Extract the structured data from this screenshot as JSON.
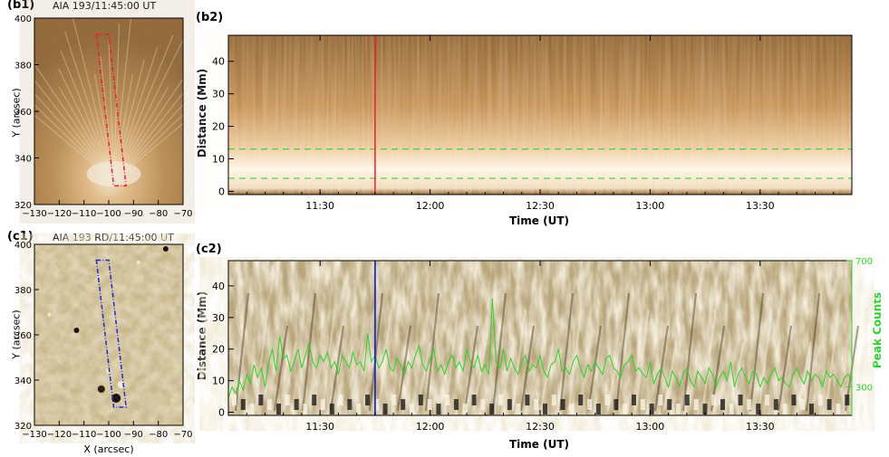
{
  "chart_data": [
    {
      "id": "b1",
      "type": "heatmap",
      "panel_label": "(b1)",
      "title": "AIA 193/11:45:00 UT",
      "ylabel": "Y (arcsec)",
      "xlabel": "",
      "xlim": [
        -130,
        -70
      ],
      "ylim": [
        320,
        400
      ],
      "xticks": [
        -130,
        -120,
        -110,
        -100,
        -90,
        -80,
        -70
      ],
      "yticks": [
        320,
        340,
        360,
        380,
        400
      ],
      "colormap": "sdoaia193",
      "slit_color": "#e8202a",
      "slit_polygon": [
        [
          -105,
          393
        ],
        [
          -100,
          393
        ],
        [
          -93,
          328
        ],
        [
          -98,
          328
        ]
      ]
    },
    {
      "id": "c1",
      "type": "heatmap",
      "panel_label": "(c1)",
      "title": "AIA 193 RD/11:45:00 UT",
      "ylabel": "Y (arcsec)",
      "xlabel": "X (arcsec)",
      "xlim": [
        -130,
        -70
      ],
      "ylim": [
        320,
        400
      ],
      "xticks": [
        -130,
        -120,
        -110,
        -100,
        -90,
        -80,
        -70
      ],
      "yticks": [
        320,
        340,
        360,
        380,
        400
      ],
      "colormap": "running-difference",
      "slit_color": "#2228c8",
      "slit_polygon": [
        [
          -105,
          393
        ],
        [
          -100,
          393
        ],
        [
          -93,
          328
        ],
        [
          -98,
          328
        ]
      ]
    },
    {
      "id": "b2",
      "type": "heatmap",
      "panel_label": "(b2)",
      "xlabel": "Time (UT)",
      "ylabel": "Distance (Mm)",
      "xlim": [
        "11:05",
        "13:55"
      ],
      "ylim": [
        -1,
        48
      ],
      "xticks": [
        "11:30",
        "12:00",
        "12:30",
        "13:00",
        "13:30"
      ],
      "yticks": [
        0,
        10,
        20,
        30,
        40
      ],
      "marker_time": "11:45",
      "marker_color": "#e8202a",
      "dashed_levels": [
        4,
        13
      ],
      "dashed_color": "#40d040"
    },
    {
      "id": "c2",
      "type": "heatmap",
      "panel_label": "(c2)",
      "xlabel": "Time (UT)",
      "ylabel": "Distance (Mm)",
      "y2label": "Peak Counts",
      "xlim": [
        "11:05",
        "13:55"
      ],
      "ylim": [
        -1,
        48
      ],
      "y2lim": [
        210,
        700
      ],
      "xticks": [
        "11:30",
        "12:00",
        "12:30",
        "13:00",
        "13:30"
      ],
      "yticks": [
        0,
        10,
        20,
        30,
        40
      ],
      "y2ticks": [
        300,
        700
      ],
      "marker_time": "11:45",
      "marker_color": "#2228c8",
      "series_color": "#30d030",
      "series": [
        {
          "x_minutes_after_1105": [
            0,
            1,
            2,
            3,
            4,
            5,
            6,
            7,
            8,
            9,
            10,
            11,
            12,
            13,
            14,
            15,
            16,
            17,
            18,
            19,
            20,
            21,
            22,
            23,
            24,
            25,
            26,
            27,
            28,
            29,
            30,
            31,
            32,
            33,
            34,
            35,
            36,
            37,
            38,
            39,
            40,
            41,
            42,
            43,
            44,
            45,
            46,
            47,
            48,
            49,
            50,
            51,
            52,
            53,
            54,
            55,
            56,
            57,
            58,
            59,
            60,
            61,
            62,
            63,
            64,
            65,
            66,
            67,
            68,
            69,
            70,
            71,
            72,
            73,
            74,
            75,
            76,
            77,
            78,
            79,
            80,
            81,
            82,
            83,
            84,
            85,
            86,
            87,
            88,
            89,
            90,
            91,
            92,
            93,
            94,
            95,
            96,
            97,
            98,
            99,
            100,
            101,
            102,
            103,
            104,
            105,
            106,
            107,
            108,
            109,
            110,
            111,
            112,
            113,
            114,
            115,
            116,
            117,
            118,
            119,
            120,
            121,
            122,
            123,
            124,
            125,
            126,
            127,
            128,
            129,
            130,
            131,
            132,
            133,
            134,
            135,
            136,
            137,
            138,
            139,
            140,
            141,
            142,
            143,
            144,
            145,
            146,
            147,
            148,
            149,
            150,
            151,
            152,
            153,
            154,
            155,
            156,
            157,
            158,
            159,
            160,
            161,
            162,
            163,
            164,
            165,
            166,
            167,
            168,
            169,
            170
          ],
          "values": [
            265,
            300,
            280,
            320,
            290,
            340,
            310,
            370,
            330,
            360,
            300,
            380,
            420,
            350,
            460,
            390,
            400,
            350,
            380,
            420,
            360,
            400,
            440,
            380,
            360,
            400,
            380,
            410,
            360,
            380,
            340,
            400,
            380,
            360,
            410,
            370,
            380,
            350,
            470,
            380,
            400,
            360,
            380,
            420,
            360,
            350,
            390,
            370,
            340,
            380,
            360,
            400,
            430,
            370,
            350,
            390,
            420,
            350,
            370,
            340,
            380,
            400,
            360,
            380,
            350,
            420,
            380,
            360,
            400,
            350,
            370,
            340,
            580,
            380,
            360,
            420,
            350,
            390,
            360,
            340,
            380,
            400,
            350,
            370,
            360,
            400,
            350,
            330,
            370,
            380,
            420,
            350,
            360,
            340,
            380,
            400,
            360,
            330,
            370,
            350,
            380,
            360,
            340,
            390,
            400,
            360,
            350,
            330,
            370,
            380,
            400,
            350,
            360,
            340,
            330,
            380,
            310,
            340,
            360,
            330,
            300,
            350,
            330,
            300,
            340,
            360,
            320,
            300,
            350,
            330,
            310,
            360,
            340,
            300,
            330,
            350,
            320,
            380,
            300,
            340,
            360,
            330,
            310,
            350,
            340,
            300,
            330,
            310,
            340,
            360,
            320,
            330,
            310,
            300,
            340,
            360,
            330,
            310,
            350,
            320,
            340,
            330,
            300,
            350,
            330,
            340,
            320,
            300,
            330,
            340,
            320
          ]
        }
      ]
    }
  ]
}
